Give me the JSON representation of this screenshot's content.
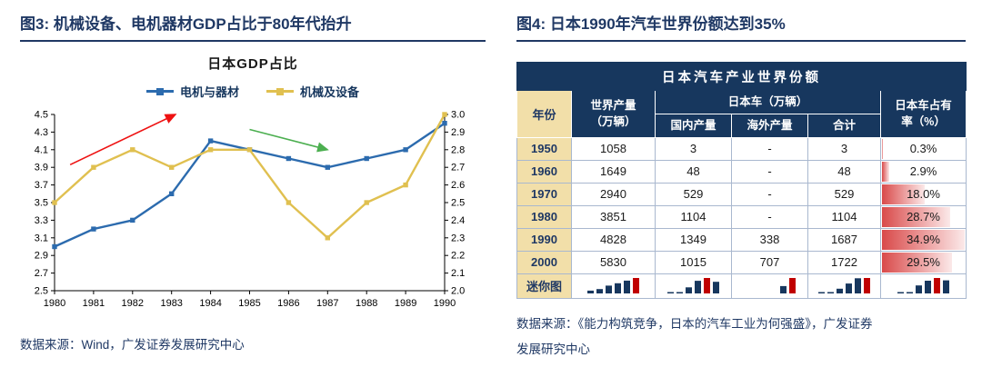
{
  "figure3": {
    "title": "图3:  机械设备、电机器材GDP占比于80年代抬升",
    "source": "数据来源：Wind，广发证券发展研究中心"
  },
  "figure4": {
    "title": "图4:  日本1990年汽车世界份额达到35%",
    "source": "数据来源：《能力构筑竞争，日本的汽车工业为何强盛》，广发证券发展研究中心"
  },
  "colors": {
    "navy": "#17375E",
    "tan": "#F2DFA9",
    "bar_red": "#C00000",
    "mini_navy": "#17375E"
  },
  "chart_data": [
    {
      "type": "line",
      "title": "日本GDP占比",
      "x": [
        1980,
        1981,
        1982,
        1983,
        1984,
        1985,
        1986,
        1987,
        1988,
        1989,
        1990
      ],
      "series": [
        {
          "name": "电机与器材",
          "axis": "left",
          "color": "#2C6BAE",
          "values": [
            3.0,
            3.2,
            3.3,
            3.6,
            4.2,
            4.1,
            4.0,
            3.9,
            4.0,
            4.1,
            4.4
          ]
        },
        {
          "name": "机械及设备",
          "axis": "right",
          "color": "#E0C050",
          "values": [
            2.5,
            2.7,
            2.8,
            2.7,
            2.8,
            2.8,
            2.5,
            2.3,
            2.5,
            2.6,
            3.0
          ]
        }
      ],
      "left_axis": {
        "min": 2.5,
        "max": 4.5,
        "step": 0.2
      },
      "right_axis": {
        "min": 2.0,
        "max": 3.0,
        "step": 0.1
      },
      "annotations": [
        {
          "type": "arrow",
          "color": "#EE1111",
          "from": [
            1980.4,
            3.93
          ],
          "to": [
            1983.1,
            4.5
          ]
        },
        {
          "type": "arrow",
          "color": "#4CAF50",
          "from": [
            1985.0,
            4.33
          ],
          "to": [
            1987.0,
            4.1
          ]
        }
      ],
      "grid": false,
      "legend_position": "top"
    },
    {
      "type": "table",
      "title": "日本汽车产业世界份额",
      "columns": {
        "year": "年份",
        "world_l1": "世界产量",
        "world_l2": "（万辆）",
        "japan_group": "日本车（万辆）",
        "domestic": "国内产量",
        "overseas": "海外产量",
        "total": "合计",
        "share_l1": "日本车占有",
        "share_l2": "率（%）"
      },
      "mini_label": "迷你图",
      "rows": [
        {
          "year": "1950",
          "world": "1058",
          "domestic": "3",
          "overseas": "-",
          "total": "3",
          "share": "0.3%",
          "share_val": 0.3
        },
        {
          "year": "1960",
          "world": "1649",
          "domestic": "48",
          "overseas": "-",
          "total": "48",
          "share": "2.9%",
          "share_val": 2.9
        },
        {
          "year": "1970",
          "world": "2940",
          "domestic": "529",
          "overseas": "-",
          "total": "529",
          "share": "18.0%",
          "share_val": 18.0
        },
        {
          "year": "1980",
          "world": "3851",
          "domestic": "1104",
          "overseas": "-",
          "total": "1104",
          "share": "28.7%",
          "share_val": 28.7
        },
        {
          "year": "1990",
          "world": "4828",
          "domestic": "1349",
          "overseas": "338",
          "total": "1687",
          "share": "34.9%",
          "share_val": 34.9
        },
        {
          "year": "2000",
          "world": "5830",
          "domestic": "1015",
          "overseas": "707",
          "total": "1722",
          "share": "29.5%",
          "share_val": 29.5
        }
      ]
    }
  ]
}
